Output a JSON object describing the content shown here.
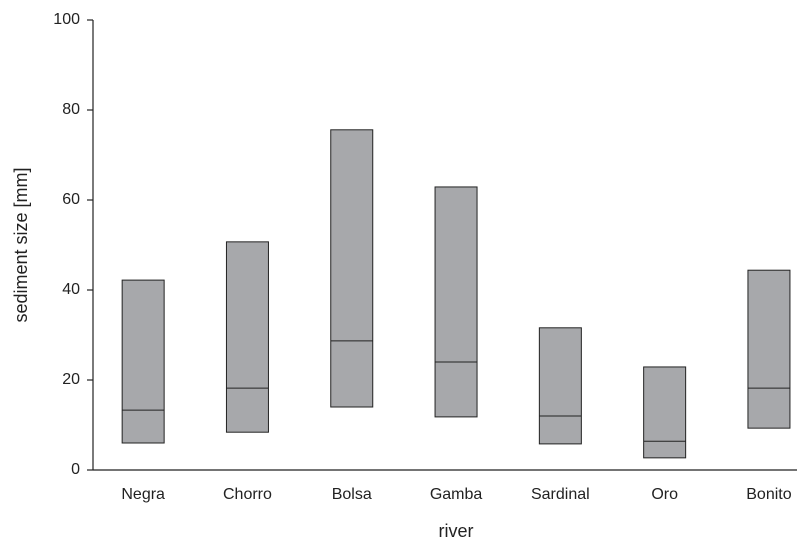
{
  "chart_data": {
    "type": "range",
    "xlabel": "river",
    "ylabel": "sediment size [mm]",
    "categories": [
      "Negra",
      "Chorro",
      "Bolsa",
      "Gamba",
      "Sardinal",
      "Oro",
      "Bonito"
    ],
    "low": [
      6.0,
      8.4,
      14.0,
      11.8,
      5.8,
      2.7,
      9.3
    ],
    "median": [
      13.3,
      18.2,
      28.7,
      24.0,
      12.0,
      6.4,
      18.2
    ],
    "high": [
      42.2,
      50.7,
      75.6,
      62.9,
      31.6,
      22.9,
      44.4
    ],
    "color": "#a7a8ab",
    "ylim": [
      0,
      100
    ],
    "yticks": [
      0,
      20,
      40,
      60,
      80,
      100
    ]
  }
}
